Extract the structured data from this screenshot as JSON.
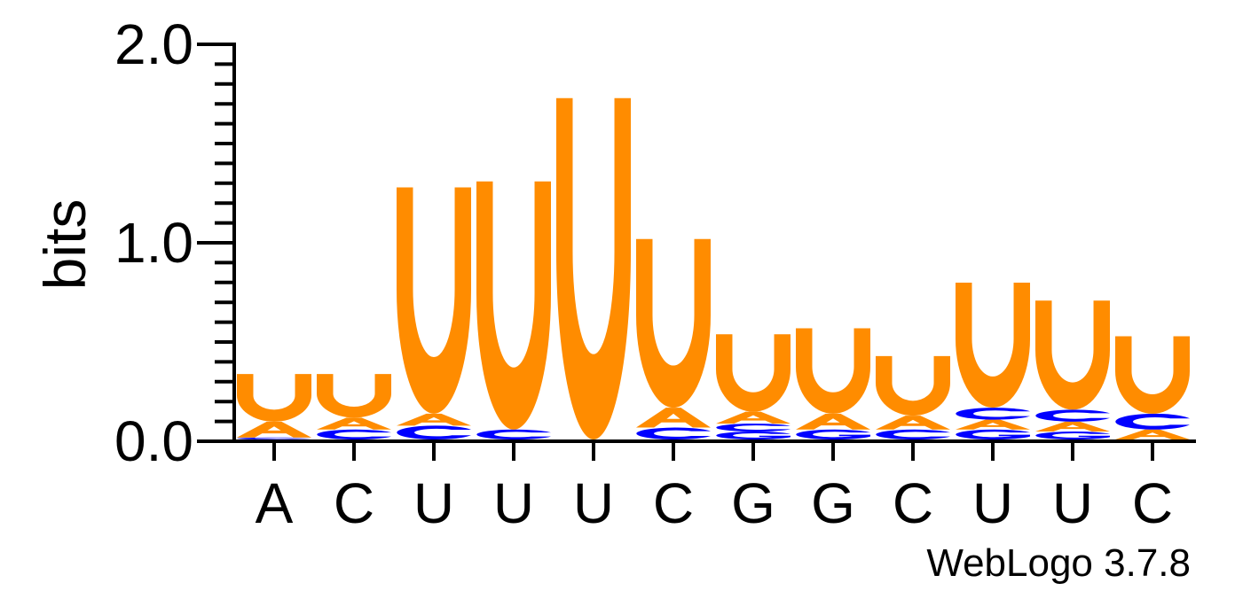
{
  "chart_data": {
    "type": "sequence-logo",
    "ylabel": "bits",
    "ylim": [
      0,
      2.0
    ],
    "yticks": [
      "0.0",
      "1.0",
      "2.0"
    ],
    "positions": [
      "A",
      "C",
      "U",
      "U",
      "U",
      "C",
      "G",
      "G",
      "C",
      "U",
      "U",
      "C"
    ],
    "colors": {
      "U": "#ff8c00",
      "A": "#ff8c00",
      "C": "#0000ff",
      "G": "#0000ff"
    },
    "columns": [
      [
        {
          "letter": "C",
          "bits": 0.01
        },
        {
          "letter": "A",
          "bits": 0.08
        },
        {
          "letter": "U",
          "bits": 0.24
        }
      ],
      [
        {
          "letter": "C",
          "bits": 0.05
        },
        {
          "letter": "A",
          "bits": 0.06
        },
        {
          "letter": "U",
          "bits": 0.22
        }
      ],
      [
        {
          "letter": "C",
          "bits": 0.07
        },
        {
          "letter": "A",
          "bits": 0.06
        },
        {
          "letter": "U",
          "bits": 1.14
        }
      ],
      [
        {
          "letter": "C",
          "bits": 0.05
        },
        {
          "letter": "U",
          "bits": 1.25
        }
      ],
      [
        {
          "letter": "U",
          "bits": 1.72
        }
      ],
      [
        {
          "letter": "C",
          "bits": 0.06
        },
        {
          "letter": "A",
          "bits": 0.1
        },
        {
          "letter": "U",
          "bits": 0.85
        }
      ],
      [
        {
          "letter": "G",
          "bits": 0.04
        },
        {
          "letter": "C",
          "bits": 0.04
        },
        {
          "letter": "A",
          "bits": 0.06
        },
        {
          "letter": "U",
          "bits": 0.39
        }
      ],
      [
        {
          "letter": "G",
          "bits": 0.05
        },
        {
          "letter": "A",
          "bits": 0.08
        },
        {
          "letter": "U",
          "bits": 0.43
        }
      ],
      [
        {
          "letter": "C",
          "bits": 0.05
        },
        {
          "letter": "A",
          "bits": 0.07
        },
        {
          "letter": "U",
          "bits": 0.3
        }
      ],
      [
        {
          "letter": "G",
          "bits": 0.05
        },
        {
          "letter": "A",
          "bits": 0.05
        },
        {
          "letter": "C",
          "bits": 0.06
        },
        {
          "letter": "U",
          "bits": 0.63
        }
      ],
      [
        {
          "letter": "G",
          "bits": 0.04
        },
        {
          "letter": "A",
          "bits": 0.05
        },
        {
          "letter": "C",
          "bits": 0.06
        },
        {
          "letter": "U",
          "bits": 0.55
        }
      ],
      [
        {
          "letter": "A",
          "bits": 0.05
        },
        {
          "letter": "C",
          "bits": 0.08
        },
        {
          "letter": "U",
          "bits": 0.39
        }
      ]
    ]
  },
  "footer": {
    "credit": "WebLogo 3.7.8"
  }
}
